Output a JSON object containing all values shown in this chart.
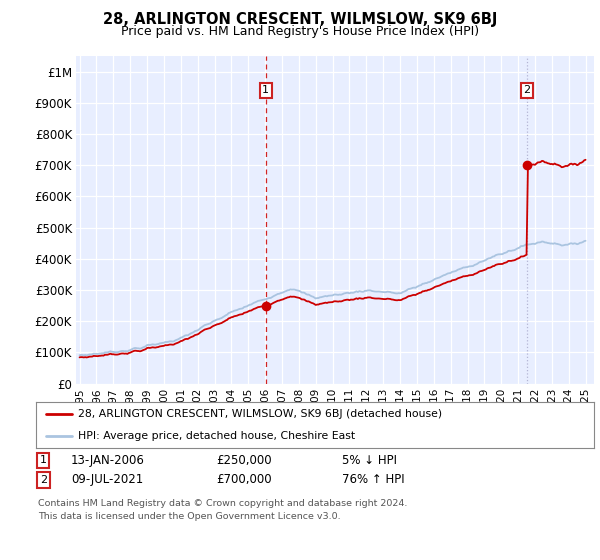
{
  "title": "28, ARLINGTON CRESCENT, WILMSLOW, SK9 6BJ",
  "subtitle": "Price paid vs. HM Land Registry's House Price Index (HPI)",
  "legend_line1": "28, ARLINGTON CRESCENT, WILMSLOW, SK9 6BJ (detached house)",
  "legend_line2": "HPI: Average price, detached house, Cheshire East",
  "footnote1": "Contains HM Land Registry data © Crown copyright and database right 2024.",
  "footnote2": "This data is licensed under the Open Government Licence v3.0.",
  "annotation1": {
    "label": "1",
    "date": "13-JAN-2006",
    "price": "£250,000",
    "hpi": "5% ↓ HPI"
  },
  "annotation2": {
    "label": "2",
    "date": "09-JUL-2021",
    "price": "£700,000",
    "hpi": "76% ↑ HPI"
  },
  "sale1_x": 2006.04,
  "sale1_y": 250000,
  "sale2_x": 2021.52,
  "sale2_y": 700000,
  "hpi_color": "#aac4e0",
  "price_color": "#cc0000",
  "bg_color": "#e8eeff",
  "ylim": [
    0,
    1050000
  ],
  "xlim": [
    1994.8,
    2025.5
  ],
  "yticks": [
    0,
    100000,
    200000,
    300000,
    400000,
    500000,
    600000,
    700000,
    800000,
    900000,
    1000000
  ],
  "ytick_labels": [
    "£0",
    "£100K",
    "£200K",
    "£300K",
    "£400K",
    "£500K",
    "£600K",
    "£700K",
    "£800K",
    "£900K",
    "£1M"
  ],
  "xticks": [
    1995,
    1996,
    1997,
    1998,
    1999,
    2000,
    2001,
    2002,
    2003,
    2004,
    2005,
    2006,
    2007,
    2008,
    2009,
    2010,
    2011,
    2012,
    2013,
    2014,
    2015,
    2016,
    2017,
    2018,
    2019,
    2020,
    2021,
    2022,
    2023,
    2024,
    2025
  ]
}
